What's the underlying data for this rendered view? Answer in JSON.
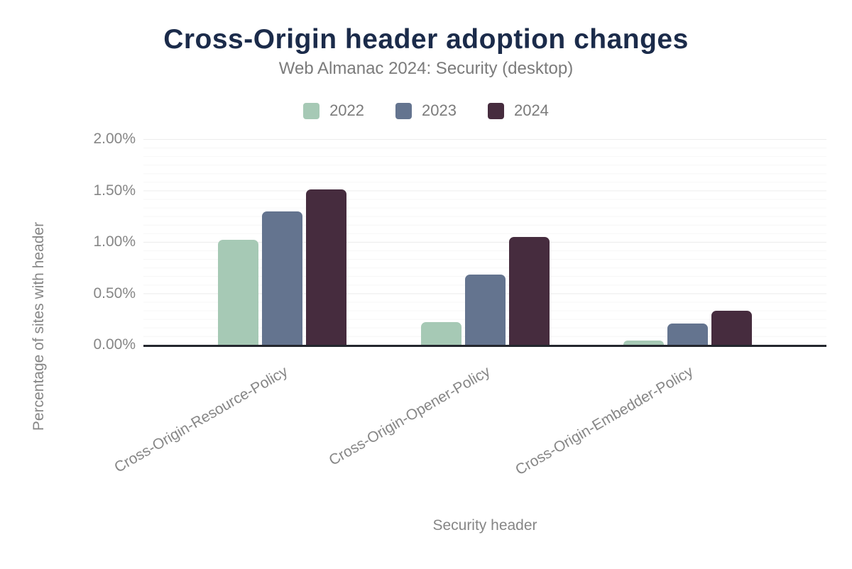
{
  "header": {
    "title": "Cross-Origin header adoption changes",
    "subtitle": "Web Almanac 2024: Security (desktop)"
  },
  "axes": {
    "y_title": "Percentage of sites with header",
    "x_title": "Security header"
  },
  "chart_data": {
    "type": "bar",
    "title": "Cross-Origin header adoption changes",
    "subtitle": "Web Almanac 2024: Security (desktop)",
    "categories": [
      "Cross-Origin-Resource-Policy",
      "Cross-Origin-Opener-Policy",
      "Cross-Origin-Embedder-Policy"
    ],
    "series": [
      {
        "name": "2022",
        "color": "#a6c9b5",
        "values": [
          1.02,
          0.22,
          0.04
        ]
      },
      {
        "name": "2023",
        "color": "#64748f",
        "values": [
          1.3,
          0.68,
          0.21
        ]
      },
      {
        "name": "2024",
        "color": "#462c3e",
        "values": [
          1.51,
          1.05,
          0.33
        ]
      }
    ],
    "xlabel": "Security header",
    "ylabel": "Percentage of sites with header",
    "ylim": [
      0,
      2
    ],
    "yticks": [
      {
        "value": 0.0,
        "label": "0.00%"
      },
      {
        "value": 0.5,
        "label": "0.50%"
      },
      {
        "value": 1.0,
        "label": "1.00%"
      },
      {
        "value": 1.5,
        "label": "1.50%"
      },
      {
        "value": 2.0,
        "label": "2.00%"
      }
    ],
    "unit": "%",
    "grid": {
      "major_step": 0.5,
      "minor_step": 0.0833,
      "visible": true
    },
    "legend_position": "top"
  },
  "colors": {
    "title_navy": "#1b2b4a",
    "text_gray": "#7b7b7b",
    "tick_gray": "#868686",
    "axis_line": "#24272e",
    "background": "#ffffff"
  }
}
